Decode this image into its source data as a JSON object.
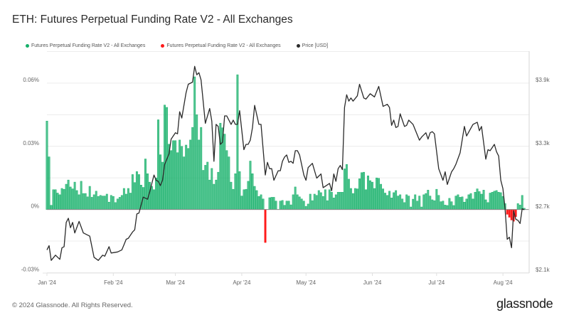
{
  "title": "ETH: Futures Perpetual Funding Rate V2 - All Exchanges",
  "footer": "© 2024 Glassnode. All Rights Reserved.",
  "logo": "glassnode",
  "colors": {
    "positive": "#16b06a",
    "negative": "#ff1a1a",
    "price": "#2a2a2a",
    "grid": "#ececec"
  },
  "chart_data": {
    "type": "bar+line",
    "legend_position": "top-left",
    "grid": true,
    "legend": [
      {
        "name": "Futures Perpetual Funding Rate V2 - All Exchanges",
        "color": "#16b06a"
      },
      {
        "name": "Futures Perpetual Funding Rate V2 - All Exchanges",
        "color": "#ff1a1a"
      },
      {
        "name": "Price [USD]",
        "color": "#2a2a2a"
      }
    ],
    "x_ticks": [
      "Jan '24",
      "Feb '24",
      "Mar '24",
      "Apr '24",
      "May '24",
      "Jun '24",
      "Jul '24",
      "Aug '24"
    ],
    "y_left": {
      "ticks": [
        "0.06%",
        "0.03%",
        "0%",
        "-0.03%"
      ],
      "tick_values": [
        0.06,
        0.03,
        0,
        -0.03
      ],
      "range": [
        -0.0302,
        0.0745
      ],
      "unit": "%"
    },
    "y_right": {
      "ticks": [
        "$3.9k",
        "$3.3k",
        "$2.7k",
        "$2.1k"
      ],
      "tick_values": [
        3900,
        3300,
        2700,
        2100
      ],
      "range": [
        2100,
        4190
      ],
      "unit": "USD"
    },
    "funding_rate_percent_by_month": {
      "2024-01": [
        0.042,
        0.025,
        0.002,
        0.0094,
        0.0094,
        0.0078,
        0.007,
        0.01,
        0.0096,
        0.012,
        0.014,
        0.0107,
        0.0098,
        0.013,
        0.009,
        0.007,
        0.0134,
        0.0076,
        0.0076,
        0.006,
        0.011,
        0.0058,
        0.007,
        0.0087,
        0.0062,
        0.0067,
        0.0064,
        0.0064,
        0.0073,
        0.0035,
        0.0067
      ],
      "2024-02": [
        0.0062,
        0.0033,
        0.005,
        0.0058,
        0.0067,
        0.01,
        0.0073,
        0.01,
        0.0078,
        0.0166,
        0.0128,
        0.018,
        0.0166,
        0.0116,
        0.0105,
        0.024,
        0.017,
        0.013,
        0.011,
        0.0094,
        0.015,
        0.0426,
        0.026,
        0.0225,
        0.0496,
        0.0485,
        0.031,
        0.028,
        0.0327
      ],
      "2024-03": [
        0.0327,
        0.027,
        0.033,
        0.03,
        0.025,
        0.0306,
        0.029,
        0.033,
        0.039,
        0.063,
        0.045,
        0.033,
        0.039,
        0.0186,
        0.021,
        0.0225,
        0.014,
        0.0195,
        0.012,
        0.014,
        0.0177,
        0.041,
        0.0388,
        0.0358,
        0.028,
        0.025,
        0.013,
        0.0096,
        0.017,
        0.064,
        0.018
      ],
      "2024-04": [
        0.0064,
        0.0094,
        0.0096,
        0.0134,
        0.023,
        0.017,
        0.011,
        0.009,
        0.0062,
        0.007,
        0.005,
        -0.0157,
        0,
        0.0056,
        0.0058,
        0.0058,
        0.004,
        0,
        0.004,
        0.0043,
        0.002,
        0.004,
        0.004,
        0.0022,
        0.007,
        0.0107,
        0.007,
        0.006,
        0.005,
        0.004
      ],
      "2024-05": [
        0.0015,
        0.0026,
        0.0073,
        0.0042,
        0.0073,
        0.0067,
        0.009,
        0.008,
        0.0062,
        0.0094,
        0.0042,
        0.0094,
        0.0082,
        0.0055,
        0.007,
        0.0082,
        0.0082,
        0.0082,
        0.0193,
        0.0214,
        0.0144,
        0.01,
        0.0076,
        0.01,
        0.0098,
        0.0146,
        0.0175,
        0.0177,
        0.0094,
        0.016,
        0.0137
      ],
      "2024-06": [
        0.013,
        0.01,
        0.015,
        0.0148,
        0.012,
        0.0098,
        0.0078,
        0.0067,
        0.0087,
        0.0055,
        0.008,
        0.009,
        0.0064,
        0.007,
        0.005,
        0.0033,
        0.007,
        0.0064,
        0.0012,
        0.0049,
        0.007,
        0.004,
        0.0064,
        0.0012,
        0.007,
        0.0076,
        0.0092,
        0.0064,
        0.0046,
        0.0042
      ],
      "2024-07": [
        0.0096,
        0.0067,
        0.0037,
        0.004,
        0.0021,
        0.0019,
        0.0053,
        0.0037,
        0.0019,
        0.0064,
        0.007,
        0.0058,
        0.006,
        0.0035,
        0.005,
        0.007,
        0.0076,
        0.005,
        0.0082,
        0.0098,
        0.0085,
        0.0073,
        0.0092,
        0.0046,
        0.0033,
        0.0078,
        0.0082,
        0.0087,
        0.009,
        0.0082,
        0.008
      ],
      "2024-08": [
        0.0062,
        0.0028,
        -0.0023,
        -0.0037,
        -0.005,
        -0.0056,
        -0.0034,
        0.0028,
        0.0021,
        0.0067,
        0.0006
      ]
    },
    "price_usd": {
      "2024-01-01": 2320,
      "2024-01-02": 2360,
      "2024-01-03": 2220,
      "2024-01-05": 2270,
      "2024-01-07": 2230,
      "2024-01-08": 2340,
      "2024-01-09": 2350,
      "2024-01-10": 2580,
      "2024-01-11": 2620,
      "2024-01-12": 2530,
      "2024-01-13": 2580,
      "2024-01-14": 2480,
      "2024-01-16": 2590,
      "2024-01-18": 2480,
      "2024-01-21": 2450,
      "2024-01-23": 2250,
      "2024-01-25": 2220,
      "2024-01-27": 2270,
      "2024-01-28": 2260,
      "2024-01-30": 2350,
      "2024-01-31": 2290,
      "2024-02-03": 2300,
      "2024-02-05": 2320,
      "2024-02-06": 2370,
      "2024-02-07": 2420,
      "2024-02-08": 2430,
      "2024-02-10": 2490,
      "2024-02-11": 2510,
      "2024-02-12": 2660,
      "2024-02-13": 2670,
      "2024-02-15": 2820,
      "2024-02-16": 2810,
      "2024-02-17": 2800,
      "2024-02-18": 2870,
      "2024-02-19": 2950,
      "2024-02-20": 3030,
      "2024-02-21": 2980,
      "2024-02-22": 2970,
      "2024-02-23": 2930,
      "2024-02-24": 2980,
      "2024-02-25": 3130,
      "2024-02-27": 3230,
      "2024-02-28": 3370,
      "2024-03-01": 3430,
      "2024-03-02": 3420,
      "2024-03-03": 3630,
      "2024-03-04": 3570,
      "2024-03-06": 3810,
      "2024-03-07": 3890,
      "2024-03-09": 3910,
      "2024-03-10": 4060,
      "2024-03-11": 3980,
      "2024-03-12": 4000,
      "2024-03-13": 3930,
      "2024-03-15": 3520,
      "2024-03-17": 3660,
      "2024-03-18": 3540,
      "2024-03-19": 3160,
      "2024-03-20": 3510,
      "2024-03-21": 3490,
      "2024-03-22": 3320,
      "2024-03-23": 3340,
      "2024-03-24": 3590,
      "2024-03-25": 3590,
      "2024-03-27": 3510,
      "2024-03-28": 3550,
      "2024-03-29": 3510,
      "2024-03-30": 3510,
      "2024-03-31": 3640,
      "2024-04-02": 3270,
      "2024-04-03": 3320,
      "2024-04-04": 3320,
      "2024-04-05": 3360,
      "2024-04-06": 3480,
      "2024-04-07": 3690,
      "2024-04-09": 3510,
      "2024-04-10": 3510,
      "2024-04-12": 3030,
      "2024-04-13": 3150,
      "2024-04-14": 3090,
      "2024-04-15": 3090,
      "2024-04-16": 2980,
      "2024-04-18": 3070,
      "2024-04-19": 3070,
      "2024-04-20": 3160,
      "2024-04-21": 3200,
      "2024-04-22": 3220,
      "2024-04-23": 3150,
      "2024-04-24": 3160,
      "2024-04-25": 3140,
      "2024-04-26": 3260,
      "2024-04-27": 3260,
      "2024-04-28": 3220,
      "2024-04-30": 3030,
      "2024-05-01": 2980,
      "2024-05-02": 3100,
      "2024-05-04": 3140,
      "2024-05-06": 3000,
      "2024-05-08": 3040,
      "2024-05-09": 2910,
      "2024-05-12": 2950,
      "2024-05-13": 2880,
      "2024-05-14": 3040,
      "2024-05-15": 2970,
      "2024-05-16": 3090,
      "2024-05-17": 3120,
      "2024-05-18": 3080,
      "2024-05-19": 3670,
      "2024-05-20": 3790,
      "2024-05-21": 3730,
      "2024-05-22": 3760,
      "2024-05-23": 3730,
      "2024-05-25": 3780,
      "2024-05-26": 3890,
      "2024-05-28": 3760,
      "2024-05-29": 3750,
      "2024-05-31": 3800,
      "2024-06-02": 3770,
      "2024-06-04": 3870,
      "2024-06-06": 3680,
      "2024-06-08": 3700,
      "2024-06-09": 3670,
      "2024-06-10": 3500,
      "2024-06-11": 3550,
      "2024-06-12": 3480,
      "2024-06-13": 3490,
      "2024-06-14": 3610,
      "2024-06-16": 3490,
      "2024-06-17": 3500,
      "2024-06-18": 3550,
      "2024-06-20": 3510,
      "2024-06-22": 3410,
      "2024-06-23": 3360,
      "2024-06-24": 3390,
      "2024-06-26": 3430,
      "2024-06-27": 3370,
      "2024-06-28": 3430,
      "2024-06-29": 3440,
      "2024-06-30": 3420,
      "2024-07-02": 3090,
      "2024-07-04": 2980,
      "2024-07-05": 3060,
      "2024-07-06": 2940,
      "2024-07-08": 3060,
      "2024-07-09": 3090,
      "2024-07-10": 3130,
      "2024-07-12": 3240,
      "2024-07-14": 3490,
      "2024-07-15": 3400,
      "2024-07-18": 3510,
      "2024-07-20": 3530,
      "2024-07-21": 3450,
      "2024-07-22": 3490,
      "2024-07-24": 3180,
      "2024-07-25": 3270,
      "2024-07-26": 3260,
      "2024-07-28": 3320,
      "2024-07-29": 3250,
      "2024-07-30": 3210,
      "2024-07-31": 2980,
      "2024-08-01": 2900,
      "2024-08-02": 2710,
      "2024-08-03": 2420,
      "2024-08-04": 2440,
      "2024-08-05": 2340,
      "2024-08-06": 2690,
      "2024-08-07": 2610,
      "2024-08-08": 2600,
      "2024-08-09": 2570,
      "2024-08-10": 2710,
      "2024-08-11": 2700
    }
  }
}
